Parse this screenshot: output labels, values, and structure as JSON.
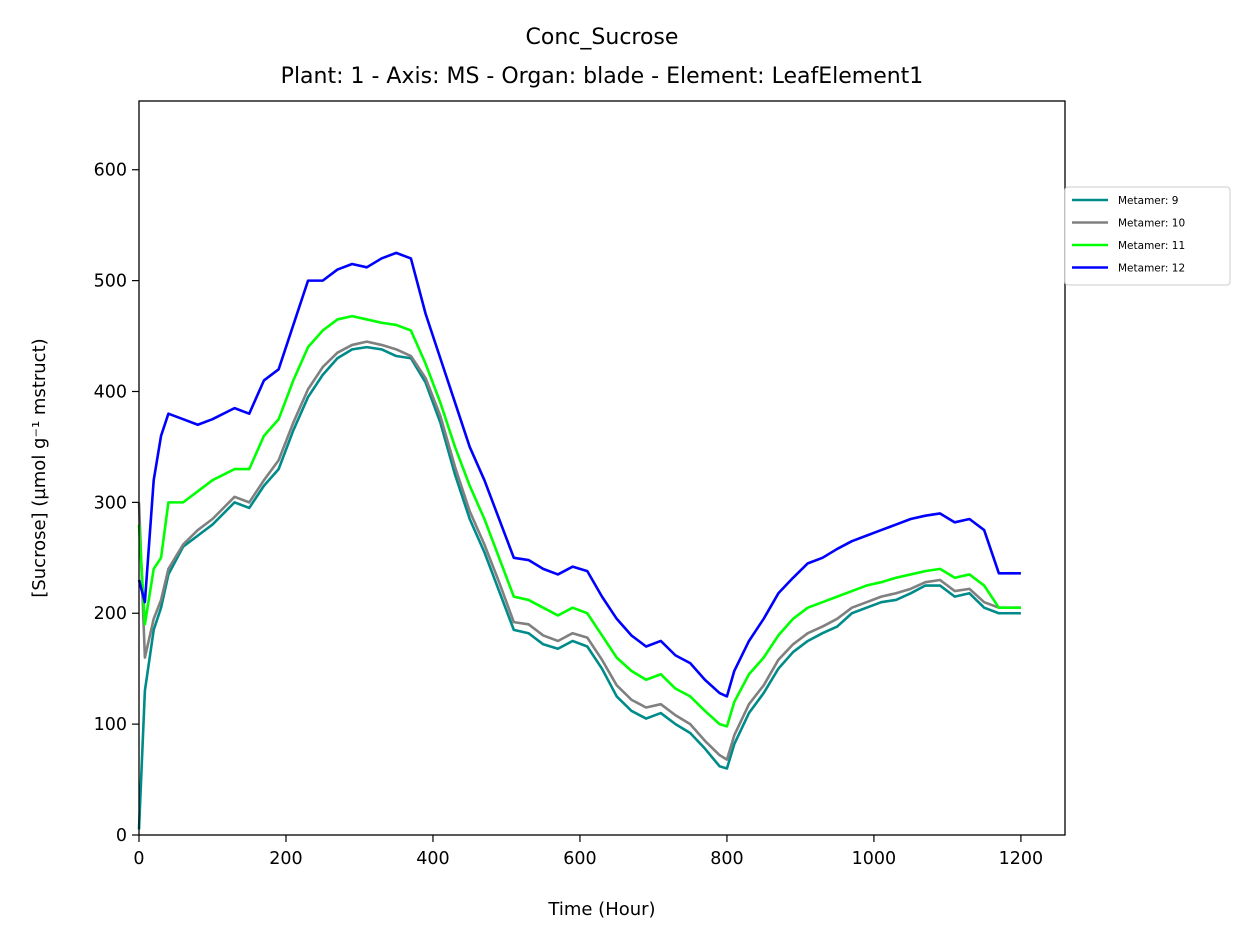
{
  "chart_data": {
    "type": "line",
    "title": "Conc_Sucrose",
    "subtitle": "Plant: 1 - Axis: MS - Organ: blade - Element: LeafElement1",
    "xlabel": "Time (Hour)",
    "ylabel": "[Sucrose] (µmol g⁻¹ mstruct)",
    "xlim": [
      0,
      1260
    ],
    "ylim": [
      0,
      662
    ],
    "xticks": [
      0,
      200,
      400,
      600,
      800,
      1000,
      1200
    ],
    "yticks": [
      0,
      100,
      200,
      300,
      400,
      500,
      600
    ],
    "grid": false,
    "legend_position": "outside-right-top",
    "series": [
      {
        "name": "Metamer: 9",
        "color": "#008b8b",
        "x": [
          0,
          8,
          20,
          30,
          40,
          60,
          80,
          100,
          130,
          150,
          170,
          190,
          210,
          230,
          250,
          270,
          290,
          310,
          330,
          350,
          370,
          390,
          410,
          430,
          450,
          470,
          490,
          510,
          530,
          550,
          570,
          590,
          610,
          630,
          650,
          670,
          690,
          710,
          730,
          750,
          770,
          790,
          800,
          810,
          830,
          850,
          870,
          890,
          910,
          930,
          950,
          970,
          990,
          1010,
          1030,
          1050,
          1070,
          1090,
          1110,
          1130,
          1150,
          1170,
          1200
        ],
        "y": [
          5,
          130,
          185,
          205,
          235,
          260,
          270,
          280,
          300,
          295,
          315,
          330,
          365,
          395,
          415,
          430,
          438,
          440,
          438,
          432,
          430,
          408,
          372,
          325,
          285,
          255,
          220,
          185,
          182,
          172,
          168,
          175,
          170,
          150,
          125,
          112,
          105,
          110,
          100,
          92,
          78,
          62,
          60,
          82,
          110,
          128,
          150,
          165,
          175,
          182,
          188,
          200,
          205,
          210,
          212,
          218,
          225,
          225,
          215,
          218,
          205,
          200,
          200
        ]
      },
      {
        "name": "Metamer: 10",
        "color": "#808080",
        "x": [
          0,
          8,
          20,
          30,
          40,
          60,
          80,
          100,
          130,
          150,
          170,
          190,
          210,
          230,
          250,
          270,
          290,
          310,
          330,
          350,
          370,
          390,
          410,
          430,
          450,
          470,
          490,
          510,
          530,
          550,
          570,
          590,
          610,
          630,
          650,
          670,
          690,
          710,
          730,
          750,
          770,
          790,
          800,
          810,
          830,
          850,
          870,
          890,
          910,
          930,
          950,
          970,
          990,
          1010,
          1030,
          1050,
          1070,
          1090,
          1110,
          1130,
          1150,
          1170,
          1200
        ],
        "y": [
          300,
          160,
          195,
          212,
          240,
          262,
          275,
          285,
          305,
          300,
          320,
          338,
          372,
          402,
          422,
          435,
          442,
          445,
          442,
          438,
          432,
          412,
          378,
          332,
          292,
          262,
          228,
          192,
          190,
          180,
          175,
          182,
          178,
          158,
          135,
          122,
          115,
          118,
          108,
          100,
          85,
          72,
          68,
          90,
          118,
          135,
          158,
          172,
          182,
          188,
          195,
          205,
          210,
          215,
          218,
          222,
          228,
          230,
          220,
          222,
          210,
          205,
          205
        ]
      },
      {
        "name": "Metamer: 11",
        "color": "#00ff00",
        "x": [
          0,
          8,
          20,
          30,
          40,
          60,
          80,
          100,
          130,
          150,
          170,
          190,
          210,
          230,
          250,
          270,
          290,
          310,
          330,
          350,
          370,
          390,
          410,
          430,
          450,
          470,
          490,
          510,
          530,
          550,
          570,
          590,
          610,
          630,
          650,
          670,
          690,
          710,
          730,
          750,
          770,
          790,
          800,
          810,
          830,
          850,
          870,
          890,
          910,
          930,
          950,
          970,
          990,
          1010,
          1030,
          1050,
          1070,
          1090,
          1110,
          1130,
          1150,
          1170,
          1200
        ],
        "y": [
          280,
          190,
          240,
          250,
          300,
          300,
          310,
          320,
          330,
          330,
          360,
          375,
          410,
          440,
          455,
          465,
          468,
          465,
          462,
          460,
          455,
          425,
          390,
          350,
          315,
          285,
          250,
          215,
          212,
          205,
          198,
          205,
          200,
          180,
          160,
          148,
          140,
          145,
          132,
          125,
          112,
          100,
          98,
          120,
          145,
          160,
          180,
          195,
          205,
          210,
          215,
          220,
          225,
          228,
          232,
          235,
          238,
          240,
          232,
          235,
          225,
          205,
          205
        ]
      },
      {
        "name": "Metamer: 12",
        "color": "#0000ff",
        "x": [
          0,
          8,
          20,
          30,
          40,
          60,
          80,
          100,
          130,
          150,
          170,
          190,
          210,
          230,
          250,
          270,
          290,
          310,
          330,
          350,
          370,
          390,
          410,
          430,
          450,
          470,
          490,
          510,
          530,
          550,
          570,
          590,
          610,
          630,
          650,
          670,
          690,
          710,
          730,
          750,
          770,
          790,
          800,
          810,
          830,
          850,
          870,
          890,
          910,
          930,
          950,
          970,
          990,
          1010,
          1030,
          1050,
          1070,
          1090,
          1110,
          1130,
          1150,
          1170,
          1200
        ],
        "y": [
          230,
          210,
          320,
          360,
          380,
          375,
          370,
          375,
          385,
          380,
          410,
          420,
          460,
          500,
          500,
          510,
          515,
          512,
          520,
          525,
          520,
          470,
          430,
          390,
          350,
          320,
          285,
          250,
          248,
          240,
          235,
          242,
          238,
          215,
          195,
          180,
          170,
          175,
          162,
          155,
          140,
          128,
          125,
          148,
          175,
          195,
          218,
          232,
          245,
          250,
          258,
          265,
          270,
          275,
          280,
          285,
          288,
          290,
          282,
          285,
          275,
          236,
          236
        ]
      }
    ]
  }
}
